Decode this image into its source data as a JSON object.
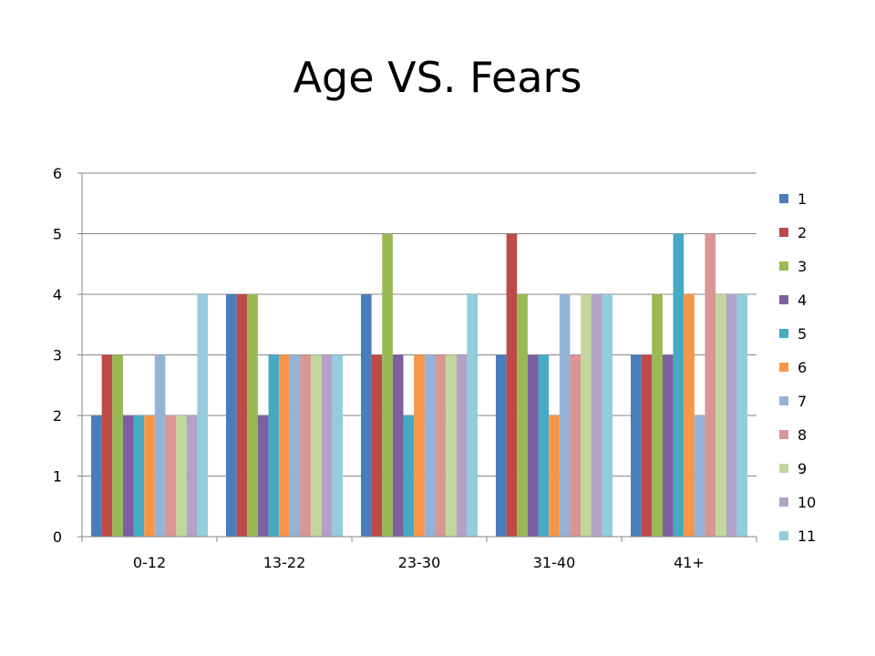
{
  "chart_data": {
    "type": "bar",
    "title": "Age VS. Fears",
    "xlabel": "",
    "ylabel": "",
    "categories": [
      "0-12",
      "13-22",
      "23-30",
      "31-40",
      "41+"
    ],
    "ylim": [
      0,
      6
    ],
    "yticks": [
      0,
      1,
      2,
      3,
      4,
      5,
      6
    ],
    "grid": true,
    "legend": "right",
    "series": [
      {
        "name": "1",
        "color": "#4a7ebb",
        "values": [
          2,
          4,
          4,
          3,
          3
        ]
      },
      {
        "name": "2",
        "color": "#be4b48",
        "values": [
          3,
          4,
          3,
          5,
          3
        ]
      },
      {
        "name": "3",
        "color": "#98b954",
        "values": [
          3,
          4,
          5,
          4,
          4
        ]
      },
      {
        "name": "4",
        "color": "#7d60a0",
        "values": [
          2,
          2,
          3,
          3,
          3
        ]
      },
      {
        "name": "5",
        "color": "#46aac5",
        "values": [
          2,
          3,
          2,
          3,
          5
        ]
      },
      {
        "name": "6",
        "color": "#f79646",
        "values": [
          2,
          3,
          3,
          2,
          4
        ]
      },
      {
        "name": "7",
        "color": "#95b3d7",
        "values": [
          3,
          3,
          3,
          4,
          2
        ]
      },
      {
        "name": "8",
        "color": "#d99694",
        "values": [
          2,
          3,
          3,
          3,
          5
        ]
      },
      {
        "name": "9",
        "color": "#c3d69b",
        "values": [
          2,
          3,
          3,
          4,
          4
        ]
      },
      {
        "name": "10",
        "color": "#b3a2c7",
        "values": [
          2,
          3,
          3,
          4,
          4
        ]
      },
      {
        "name": "11",
        "color": "#93cddd",
        "values": [
          4,
          3,
          4,
          4,
          4
        ]
      }
    ]
  }
}
